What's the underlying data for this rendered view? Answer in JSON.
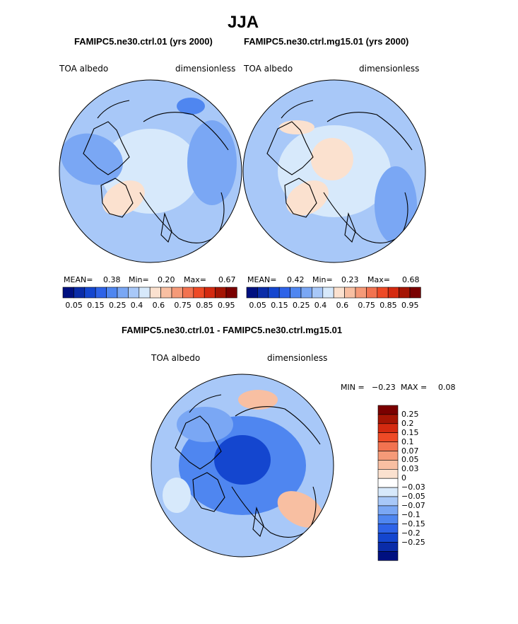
{
  "title": "JJA",
  "colors": {
    "blue_scale": [
      "#001080",
      "#0a2ca8",
      "#1446cf",
      "#2e63e8",
      "#4f86f0",
      "#7aa7f4",
      "#a8c8f8",
      "#d7e9fb"
    ],
    "red_scale": [
      "#fbe1cf",
      "#f8bfa2",
      "#f59a78",
      "#f27350",
      "#ee4a26",
      "#d42a10",
      "#a51504",
      "#7a0000"
    ],
    "coast": "#000000"
  },
  "chart_data": [
    {
      "type": "heatmap",
      "title": "FAMIPC5.ne30.ctrl.01 (yrs 2000)",
      "variable": "TOA albedo",
      "units": "dimensionless",
      "projection": "polar-stereographic north",
      "stats": [
        {
          "label": "MEAN=",
          "value": "0.38"
        },
        {
          "label": "Min=",
          "value": "0.20"
        },
        {
          "label": "Max=",
          "value": "0.67"
        }
      ],
      "colorbar": {
        "orientation": "horizontal",
        "tick_labels": [
          "0.05",
          "0.15",
          "0.25",
          "0.4",
          "0.6",
          "0.75",
          "0.85",
          "0.95"
        ],
        "levels": [
          0.05,
          0.1,
          0.15,
          0.2,
          0.25,
          0.3,
          0.4,
          0.5,
          0.6,
          0.7,
          0.75,
          0.8,
          0.85,
          0.9,
          0.95
        ]
      },
      "mean": 0.38,
      "min": 0.2,
      "max": 0.67
    },
    {
      "type": "heatmap",
      "title": "FAMIPC5.ne30.ctrl.mg15.01 (yrs 2000)",
      "variable": "TOA albedo",
      "units": "dimensionless",
      "projection": "polar-stereographic north",
      "stats": [
        {
          "label": "MEAN=",
          "value": "0.42"
        },
        {
          "label": "Min=",
          "value": "0.23"
        },
        {
          "label": "Max=",
          "value": "0.68"
        }
      ],
      "colorbar": {
        "orientation": "horizontal",
        "tick_labels": [
          "0.05",
          "0.15",
          "0.25",
          "0.4",
          "0.6",
          "0.75",
          "0.85",
          "0.95"
        ],
        "levels": [
          0.05,
          0.1,
          0.15,
          0.2,
          0.25,
          0.3,
          0.4,
          0.5,
          0.6,
          0.7,
          0.75,
          0.8,
          0.85,
          0.9,
          0.95
        ]
      },
      "mean": 0.42,
      "min": 0.23,
      "max": 0.68
    },
    {
      "type": "heatmap",
      "title": "FAMIPC5.ne30.ctrl.01 - FAMIPC5.ne30.ctrl.mg15.01",
      "variable": "TOA albedo",
      "units": "dimensionless",
      "projection": "polar-stereographic north",
      "range": [
        {
          "label": "MIN =",
          "value": "−0.23"
        },
        {
          "label": "MAX =",
          "value": "0.08"
        }
      ],
      "colorbar": {
        "orientation": "vertical",
        "tick_labels": [
          "0.25",
          "0.2",
          "0.15",
          "0.1",
          "0.07",
          "0.05",
          "0.03",
          "0",
          "−0.03",
          "−0.05",
          "−0.07",
          "−0.1",
          "−0.15",
          "−0.2",
          "−0.25"
        ],
        "levels": [
          0.25,
          0.2,
          0.15,
          0.1,
          0.07,
          0.05,
          0.03,
          0,
          -0.03,
          -0.05,
          -0.07,
          -0.1,
          -0.15,
          -0.2,
          -0.25
        ]
      },
      "min": -0.23,
      "max": 0.08
    }
  ]
}
